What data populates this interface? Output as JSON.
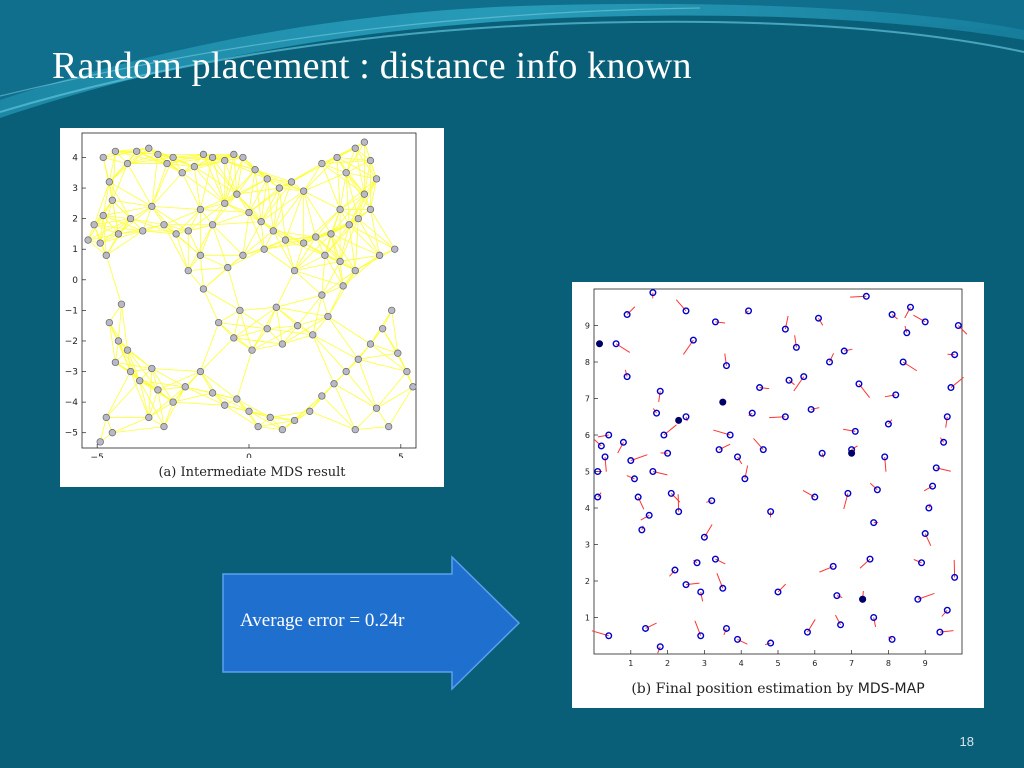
{
  "slide": {
    "title": "Random placement : distance info known",
    "callout_text": "Average error = 0.24r",
    "slide_number": "18",
    "background_color": "#0a5f78",
    "arrow_color": "#1f6fcf"
  },
  "panel_a": {
    "caption_prefix": "(a) Intermediate MDS result",
    "x_ticks": [
      "−5",
      "0",
      "5"
    ],
    "y_ticks": [
      "4",
      "3",
      "2",
      "1",
      "0",
      "−1",
      "−2",
      "−3",
      "−4",
      "−5"
    ]
  },
  "panel_b": {
    "caption_prefix": "(b) Final position estimation by ",
    "caption_suffix": "MDS-MAP",
    "x_ticks": [
      "1",
      "2",
      "3",
      "4",
      "5",
      "6",
      "7",
      "8",
      "9"
    ],
    "y_ticks": [
      "9",
      "8",
      "7",
      "6",
      "5",
      "4",
      "3",
      "2",
      "1"
    ]
  },
  "chart_data": [
    {
      "type": "scatter",
      "title": "(a) Intermediate MDS result",
      "xlim": [
        -5.5,
        5.5
      ],
      "ylim": [
        -5.5,
        4.8
      ],
      "node_color": "#b8b8c8",
      "edge_color": "#ffff33",
      "points": [
        [
          -5.3,
          1.3
        ],
        [
          -5.1,
          1.8
        ],
        [
          -4.9,
          1.2
        ],
        [
          -4.7,
          0.8
        ],
        [
          -4.8,
          2.1
        ],
        [
          -4.5,
          2.6
        ],
        [
          -4.6,
          3.2
        ],
        [
          -4.8,
          4.0
        ],
        [
          -4.4,
          4.2
        ],
        [
          -4.0,
          3.8
        ],
        [
          -3.7,
          4.2
        ],
        [
          -3.3,
          4.3
        ],
        [
          -3.0,
          4.1
        ],
        [
          -2.7,
          3.8
        ],
        [
          -2.5,
          4.0
        ],
        [
          -2.2,
          3.5
        ],
        [
          -1.8,
          3.7
        ],
        [
          -1.5,
          4.1
        ],
        [
          -1.2,
          4.0
        ],
        [
          -0.8,
          3.9
        ],
        [
          -0.5,
          4.1
        ],
        [
          -0.2,
          4.0
        ],
        [
          0.2,
          3.6
        ],
        [
          0.6,
          3.3
        ],
        [
          1.0,
          3.0
        ],
        [
          1.4,
          3.2
        ],
        [
          1.8,
          2.9
        ],
        [
          2.4,
          3.8
        ],
        [
          2.9,
          4.0
        ],
        [
          3.2,
          3.5
        ],
        [
          3.5,
          4.3
        ],
        [
          3.8,
          4.5
        ],
        [
          4.0,
          3.9
        ],
        [
          4.2,
          3.3
        ],
        [
          3.8,
          2.8
        ],
        [
          4.0,
          2.3
        ],
        [
          3.6,
          2.0
        ],
        [
          3.3,
          1.8
        ],
        [
          3.0,
          2.3
        ],
        [
          2.7,
          1.5
        ],
        [
          2.2,
          1.4
        ],
        [
          1.8,
          1.2
        ],
        [
          2.5,
          0.8
        ],
        [
          3.0,
          0.6
        ],
        [
          3.5,
          0.3
        ],
        [
          4.3,
          0.8
        ],
        [
          4.8,
          1.0
        ],
        [
          -4.3,
          1.5
        ],
        [
          -3.9,
          2.0
        ],
        [
          -3.5,
          1.6
        ],
        [
          -3.2,
          2.4
        ],
        [
          -2.8,
          1.8
        ],
        [
          -2.4,
          1.5
        ],
        [
          -2.0,
          1.6
        ],
        [
          -1.6,
          2.3
        ],
        [
          -1.2,
          1.8
        ],
        [
          -0.8,
          2.5
        ],
        [
          -0.4,
          2.8
        ],
        [
          0.0,
          2.2
        ],
        [
          0.4,
          1.9
        ],
        [
          0.8,
          1.6
        ],
        [
          1.2,
          1.3
        ],
        [
          0.5,
          1.0
        ],
        [
          -0.2,
          0.8
        ],
        [
          -0.7,
          0.4
        ],
        [
          -4.2,
          -0.8
        ],
        [
          -4.6,
          -1.4
        ],
        [
          -4.3,
          -2.0
        ],
        [
          -4.0,
          -2.3
        ],
        [
          -4.4,
          -2.7
        ],
        [
          -3.9,
          -3.0
        ],
        [
          -3.6,
          -3.3
        ],
        [
          -3.2,
          -2.9
        ],
        [
          -3.0,
          -3.6
        ],
        [
          -2.5,
          -4.0
        ],
        [
          -2.1,
          -3.5
        ],
        [
          -1.6,
          -3.0
        ],
        [
          -1.2,
          -3.7
        ],
        [
          -0.8,
          -4.1
        ],
        [
          -0.4,
          -3.9
        ],
        [
          0.0,
          -4.3
        ],
        [
          0.3,
          -4.8
        ],
        [
          0.7,
          -4.5
        ],
        [
          1.1,
          -4.9
        ],
        [
          1.5,
          -4.6
        ],
        [
          2.0,
          -4.3
        ],
        [
          2.4,
          -3.8
        ],
        [
          2.8,
          -3.4
        ],
        [
          3.2,
          -3.0
        ],
        [
          3.6,
          -2.6
        ],
        [
          4.0,
          -2.1
        ],
        [
          4.4,
          -1.6
        ],
        [
          4.7,
          -1.0
        ],
        [
          4.9,
          -2.4
        ],
        [
          5.2,
          -3.0
        ],
        [
          5.4,
          -3.5
        ],
        [
          4.6,
          -4.8
        ],
        [
          4.2,
          -4.2
        ],
        [
          3.5,
          -4.9
        ],
        [
          -1.0,
          -1.4
        ],
        [
          -0.5,
          -1.9
        ],
        [
          0.1,
          -2.3
        ],
        [
          0.6,
          -1.6
        ],
        [
          1.1,
          -2.1
        ],
        [
          1.6,
          -1.5
        ],
        [
          2.1,
          -1.8
        ],
        [
          2.6,
          -1.2
        ],
        [
          -2.0,
          0.3
        ],
        [
          -1.6,
          0.8
        ],
        [
          1.5,
          0.3
        ],
        [
          -4.7,
          -4.5
        ],
        [
          -4.5,
          -5.0
        ],
        [
          -4.9,
          -5.3
        ],
        [
          -3.3,
          -4.5
        ],
        [
          -2.8,
          -4.8
        ],
        [
          0.9,
          -0.9
        ],
        [
          -0.3,
          -1.0
        ],
        [
          2.4,
          -0.5
        ],
        [
          3.1,
          -0.2
        ],
        [
          -1.5,
          -0.3
        ]
      ]
    },
    {
      "type": "scatter",
      "title": "(b) Final position estimation by MDS-MAP",
      "xlim": [
        0,
        10
      ],
      "ylim": [
        0,
        10
      ],
      "estimate_marker_color": "#0000cc",
      "error_line_color": "#ff3333",
      "points": [
        [
          0.1,
          5.0
        ],
        [
          0.2,
          5.7
        ],
        [
          0.3,
          5.4
        ],
        [
          0.1,
          4.3
        ],
        [
          0.4,
          6.0
        ],
        [
          0.6,
          8.5
        ],
        [
          0.9,
          7.6
        ],
        [
          0.8,
          5.8
        ],
        [
          1.0,
          5.3
        ],
        [
          1.1,
          4.8
        ],
        [
          1.2,
          4.3
        ],
        [
          1.3,
          3.4
        ],
        [
          1.5,
          3.8
        ],
        [
          1.6,
          5.0
        ],
        [
          1.7,
          6.6
        ],
        [
          1.8,
          7.2
        ],
        [
          1.9,
          6.0
        ],
        [
          2.0,
          5.5
        ],
        [
          2.1,
          4.4
        ],
        [
          2.3,
          3.9
        ],
        [
          2.2,
          2.3
        ],
        [
          2.5,
          1.9
        ],
        [
          2.8,
          2.5
        ],
        [
          2.9,
          1.7
        ],
        [
          3.0,
          3.2
        ],
        [
          3.2,
          4.2
        ],
        [
          3.3,
          2.6
        ],
        [
          3.5,
          1.8
        ],
        [
          3.6,
          0.7
        ],
        [
          3.4,
          5.6
        ],
        [
          3.7,
          6.0
        ],
        [
          3.9,
          5.4
        ],
        [
          4.1,
          4.8
        ],
        [
          4.3,
          6.6
        ],
        [
          4.5,
          7.3
        ],
        [
          4.6,
          5.6
        ],
        [
          4.8,
          3.9
        ],
        [
          5.0,
          1.7
        ],
        [
          5.2,
          6.5
        ],
        [
          5.3,
          7.5
        ],
        [
          5.5,
          8.4
        ],
        [
          5.7,
          7.6
        ],
        [
          5.9,
          6.7
        ],
        [
          6.0,
          4.3
        ],
        [
          6.2,
          5.5
        ],
        [
          6.4,
          8.0
        ],
        [
          6.5,
          2.4
        ],
        [
          6.6,
          1.6
        ],
        [
          6.7,
          0.8
        ],
        [
          6.9,
          4.4
        ],
        [
          7.0,
          5.6
        ],
        [
          7.1,
          6.1
        ],
        [
          7.2,
          7.4
        ],
        [
          7.3,
          1.5
        ],
        [
          7.5,
          2.6
        ],
        [
          7.6,
          3.6
        ],
        [
          7.7,
          4.5
        ],
        [
          7.9,
          5.4
        ],
        [
          8.0,
          6.3
        ],
        [
          8.2,
          7.1
        ],
        [
          8.4,
          8.0
        ],
        [
          8.5,
          8.8
        ],
        [
          8.6,
          9.5
        ],
        [
          8.8,
          1.5
        ],
        [
          8.9,
          2.5
        ],
        [
          9.0,
          3.3
        ],
        [
          9.1,
          4.0
        ],
        [
          9.2,
          4.6
        ],
        [
          9.3,
          5.1
        ],
        [
          9.5,
          5.8
        ],
        [
          9.6,
          6.5
        ],
        [
          9.7,
          7.3
        ],
        [
          9.8,
          8.2
        ],
        [
          9.9,
          9.0
        ],
        [
          9.8,
          2.1
        ],
        [
          9.6,
          1.2
        ],
        [
          9.4,
          0.6
        ],
        [
          8.1,
          0.4
        ],
        [
          7.6,
          1.0
        ],
        [
          5.8,
          0.6
        ],
        [
          4.8,
          0.3
        ],
        [
          3.9,
          0.4
        ],
        [
          2.9,
          0.5
        ],
        [
          1.8,
          0.2
        ],
        [
          1.4,
          0.7
        ],
        [
          0.4,
          0.5
        ],
        [
          6.1,
          9.2
        ],
        [
          5.2,
          8.9
        ],
        [
          4.2,
          9.4
        ],
        [
          3.3,
          9.1
        ],
        [
          2.5,
          9.4
        ],
        [
          1.6,
          9.9
        ],
        [
          0.9,
          9.3
        ],
        [
          7.4,
          9.8
        ],
        [
          8.1,
          9.3
        ],
        [
          3.6,
          7.9
        ],
        [
          2.7,
          8.6
        ],
        [
          6.8,
          8.3
        ],
        [
          9.0,
          9.1
        ],
        [
          2.5,
          6.5
        ]
      ]
    }
  ]
}
